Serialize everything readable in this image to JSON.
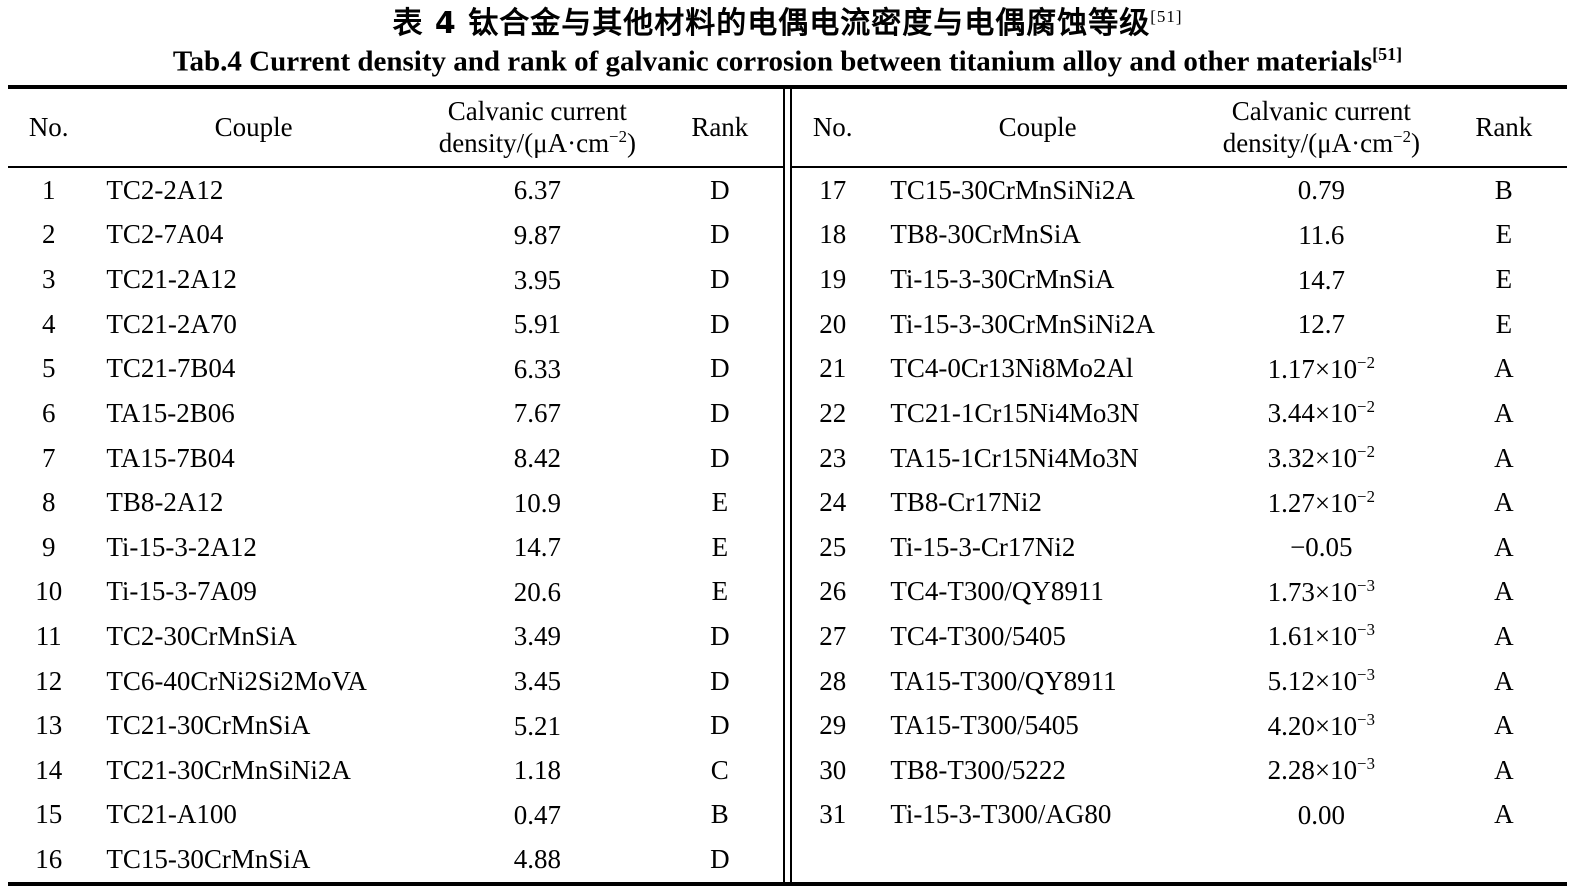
{
  "title": {
    "zh": "表 4  钛合金与其他材料的电偶电流密度与电偶腐蚀等级",
    "zh_ref": "[51]",
    "en": "Tab.4 Current density and rank of galvanic corrosion between titanium alloy and other materials",
    "en_ref": "[51]"
  },
  "columns": {
    "no": "No.",
    "couple": "Couple",
    "density_line1": "Calvanic current",
    "density_line2": "density/(μA·cm",
    "density_exp": "−2",
    "density_close": ")",
    "rank": "Rank"
  },
  "left_rows": [
    {
      "no": "1",
      "couple": "TC2-2A12",
      "density": "6.37",
      "density_exp": "",
      "rank": "D"
    },
    {
      "no": "2",
      "couple": "TC2-7A04",
      "density": "9.87",
      "density_exp": "",
      "rank": "D"
    },
    {
      "no": "3",
      "couple": "TC21-2A12",
      "density": "3.95",
      "density_exp": "",
      "rank": "D"
    },
    {
      "no": "4",
      "couple": "TC21-2A70",
      "density": "5.91",
      "density_exp": "",
      "rank": "D"
    },
    {
      "no": "5",
      "couple": "TC21-7B04",
      "density": "6.33",
      "density_exp": "",
      "rank": "D"
    },
    {
      "no": "6",
      "couple": "TA15-2B06",
      "density": "7.67",
      "density_exp": "",
      "rank": "D"
    },
    {
      "no": "7",
      "couple": "TA15-7B04",
      "density": "8.42",
      "density_exp": "",
      "rank": "D"
    },
    {
      "no": "8",
      "couple": "TB8-2A12",
      "density": "10.9",
      "density_exp": "",
      "rank": "E"
    },
    {
      "no": "9",
      "couple": "Ti-15-3-2A12",
      "density": "14.7",
      "density_exp": "",
      "rank": "E"
    },
    {
      "no": "10",
      "couple": "Ti-15-3-7A09",
      "density": "20.6",
      "density_exp": "",
      "rank": "E"
    },
    {
      "no": "11",
      "couple": "TC2-30CrMnSiA",
      "density": "3.49",
      "density_exp": "",
      "rank": "D"
    },
    {
      "no": "12",
      "couple": "TC6-40CrNi2Si2MoVA",
      "density": "3.45",
      "density_exp": "",
      "rank": "D"
    },
    {
      "no": "13",
      "couple": "TC21-30CrMnSiA",
      "density": "5.21",
      "density_exp": "",
      "rank": "D"
    },
    {
      "no": "14",
      "couple": "TC21-30CrMnSiNi2A",
      "density": "1.18",
      "density_exp": "",
      "rank": "C"
    },
    {
      "no": "15",
      "couple": "TC21-A100",
      "density": "0.47",
      "density_exp": "",
      "rank": "B"
    },
    {
      "no": "16",
      "couple": "TC15-30CrMnSiA",
      "density": "4.88",
      "density_exp": "",
      "rank": "D"
    }
  ],
  "right_rows": [
    {
      "no": "17",
      "couple": "TC15-30CrMnSiNi2A",
      "density": "0.79",
      "density_exp": "",
      "rank": "B"
    },
    {
      "no": "18",
      "couple": "TB8-30CrMnSiA",
      "density": "11.6",
      "density_exp": "",
      "rank": "E"
    },
    {
      "no": "19",
      "couple": "Ti-15-3-30CrMnSiA",
      "density": "14.7",
      "density_exp": "",
      "rank": "E"
    },
    {
      "no": "20",
      "couple": "Ti-15-3-30CrMnSiNi2A",
      "density": "12.7",
      "density_exp": "",
      "rank": "E"
    },
    {
      "no": "21",
      "couple": "TC4-0Cr13Ni8Mo2Al",
      "density": "1.17×10",
      "density_exp": "−2",
      "rank": "A"
    },
    {
      "no": "22",
      "couple": "TC21-1Cr15Ni4Mo3N",
      "density": "3.44×10",
      "density_exp": "−2",
      "rank": "A"
    },
    {
      "no": "23",
      "couple": "TA15-1Cr15Ni4Mo3N",
      "density": "3.32×10",
      "density_exp": "−2",
      "rank": "A"
    },
    {
      "no": "24",
      "couple": "TB8-Cr17Ni2",
      "density": "1.27×10",
      "density_exp": "−2",
      "rank": "A"
    },
    {
      "no": "25",
      "couple": "Ti-15-3-Cr17Ni2",
      "density": "−0.05",
      "density_exp": "",
      "rank": "A"
    },
    {
      "no": "26",
      "couple": "TC4-T300/QY8911",
      "density": "1.73×10",
      "density_exp": "−3",
      "rank": "A"
    },
    {
      "no": "27",
      "couple": "TC4-T300/5405",
      "density": "1.61×10",
      "density_exp": "−3",
      "rank": "A"
    },
    {
      "no": "28",
      "couple": "TA15-T300/QY8911",
      "density": "5.12×10",
      "density_exp": "−3",
      "rank": "A"
    },
    {
      "no": "29",
      "couple": "TA15-T300/5405",
      "density": "4.20×10",
      "density_exp": "−3",
      "rank": "A"
    },
    {
      "no": "30",
      "couple": "TB8-T300/5222",
      "density": "2.28×10",
      "density_exp": "−3",
      "rank": "A"
    },
    {
      "no": "31",
      "couple": "Ti-15-3-T300/AG80",
      "density": "0.00",
      "density_exp": "",
      "rank": "A"
    }
  ]
}
